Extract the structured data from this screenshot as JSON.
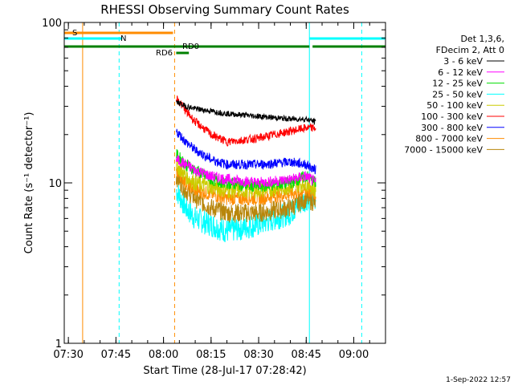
{
  "chart_data": {
    "type": "line",
    "title": "RHESSI Observing Summary Count Rates",
    "xlabel": "Start Time (28-Jul-17 07:28:42)",
    "ylabel": "Count Rate (s⁻¹ detector⁻¹)",
    "y_scale": "log",
    "ylim": [
      1,
      100
    ],
    "xlim": [
      "07:28:42",
      "09:10:00"
    ],
    "x_ticks": [
      "07:30",
      "07:45",
      "08:00",
      "08:15",
      "08:30",
      "08:45",
      "09:00"
    ],
    "y_ticks": [
      "1",
      "10",
      "100"
    ],
    "legend_title": [
      "Det 1,3,6,",
      "FDecim 2, Att 0"
    ],
    "legend_position": "right",
    "grid": false,
    "series": [
      {
        "name": "3 - 6 keV",
        "color": "#000000",
        "x": [
          "08:04",
          "08:07",
          "08:10",
          "08:15",
          "08:20",
          "08:30",
          "08:40",
          "08:45",
          "08:48"
        ],
        "values": [
          32,
          30,
          29,
          28,
          27,
          26,
          25,
          25,
          24
        ]
      },
      {
        "name": "6 - 12 keV",
        "color": "#ff00ff",
        "x": [
          "08:04",
          "08:07",
          "08:10",
          "08:15",
          "08:20",
          "08:30",
          "08:40",
          "08:45",
          "08:48"
        ],
        "values": [
          14,
          13,
          12,
          11,
          10.5,
          10,
          10.5,
          11,
          10
        ]
      },
      {
        "name": "12 - 25 keV",
        "color": "#00dd00",
        "x": [
          "08:04",
          "08:07",
          "08:10",
          "08:15",
          "08:20",
          "08:30",
          "08:40",
          "08:45",
          "08:48"
        ],
        "values": [
          15,
          13,
          12,
          10.5,
          10,
          9.5,
          10,
          11,
          10
        ]
      },
      {
        "name": "25 - 50 keV",
        "color": "#00ffff",
        "x": [
          "08:04",
          "08:07",
          "08:10",
          "08:15",
          "08:20",
          "08:30",
          "08:40",
          "08:45",
          "08:48"
        ],
        "values": [
          9,
          7,
          6,
          5.5,
          5,
          5.5,
          6.5,
          8,
          8
        ]
      },
      {
        "name": "50 - 100 keV",
        "color": "#cccc00",
        "x": [
          "08:04",
          "08:07",
          "08:10",
          "08:15",
          "08:20",
          "08:30",
          "08:40",
          "08:45",
          "08:48"
        ],
        "values": [
          13,
          11,
          10,
          9.5,
          9,
          9,
          9.5,
          10,
          9
        ]
      },
      {
        "name": "100 - 300 keV",
        "color": "#ff0000",
        "x": [
          "08:04",
          "08:07",
          "08:10",
          "08:15",
          "08:20",
          "08:30",
          "08:40",
          "08:45",
          "08:48"
        ],
        "values": [
          34,
          28,
          24,
          20,
          18,
          19,
          21,
          22,
          22
        ]
      },
      {
        "name": "300 - 800 keV",
        "color": "#0000ff",
        "x": [
          "08:04",
          "08:07",
          "08:10",
          "08:15",
          "08:20",
          "08:30",
          "08:40",
          "08:45",
          "08:48"
        ],
        "values": [
          21,
          18,
          16,
          14,
          13,
          13,
          13.5,
          13,
          12
        ]
      },
      {
        "name": "800 - 7000 keV",
        "color": "#ff8c00",
        "x": [
          "08:04",
          "08:07",
          "08:10",
          "08:15",
          "08:20",
          "08:30",
          "08:40",
          "08:45",
          "08:48"
        ],
        "values": [
          12,
          10,
          9,
          8.5,
          8,
          8,
          8.5,
          9,
          8.5
        ]
      },
      {
        "name": "7000 - 15000 keV",
        "color": "#b8860b",
        "x": [
          "08:04",
          "08:07",
          "08:10",
          "08:15",
          "08:20",
          "08:30",
          "08:40",
          "08:45",
          "08:48"
        ],
        "values": [
          11,
          9,
          8,
          7,
          6.5,
          6.5,
          7,
          8,
          7.5
        ]
      }
    ],
    "flag_bars": [
      {
        "label": "S",
        "color": "#ff8c00",
        "x_start": "07:28:42",
        "x_end": "08:03"
      },
      {
        "label": "N",
        "color": "#00ffff",
        "x_start": "07:28:42",
        "x_end": "07:47"
      },
      {
        "label": "",
        "color": "#00ffff",
        "x_start": "08:46",
        "x_end": "09:10"
      },
      {
        "label": "RD0",
        "color": "#008000",
        "x_start": "07:28:42",
        "x_end": "08:46"
      },
      {
        "label": "",
        "color": "#008000",
        "x_start": "08:47",
        "x_end": "09:10"
      },
      {
        "label": "RD6",
        "color": "#008000",
        "x_start": "08:04",
        "x_end": "08:08"
      }
    ],
    "vertical_markers": [
      {
        "x": "07:34:30",
        "color": "#ff8c00",
        "style": "solid"
      },
      {
        "x": "07:46",
        "color": "#00ffff",
        "style": "dashed"
      },
      {
        "x": "08:03:30",
        "color": "#ff8c00",
        "style": "dashed"
      },
      {
        "x": "08:46",
        "color": "#00ffff",
        "style": "solid"
      },
      {
        "x": "09:02:30",
        "color": "#00ffff",
        "style": "dashed"
      }
    ],
    "footer_date": "1-Sep-2022 12:57"
  }
}
